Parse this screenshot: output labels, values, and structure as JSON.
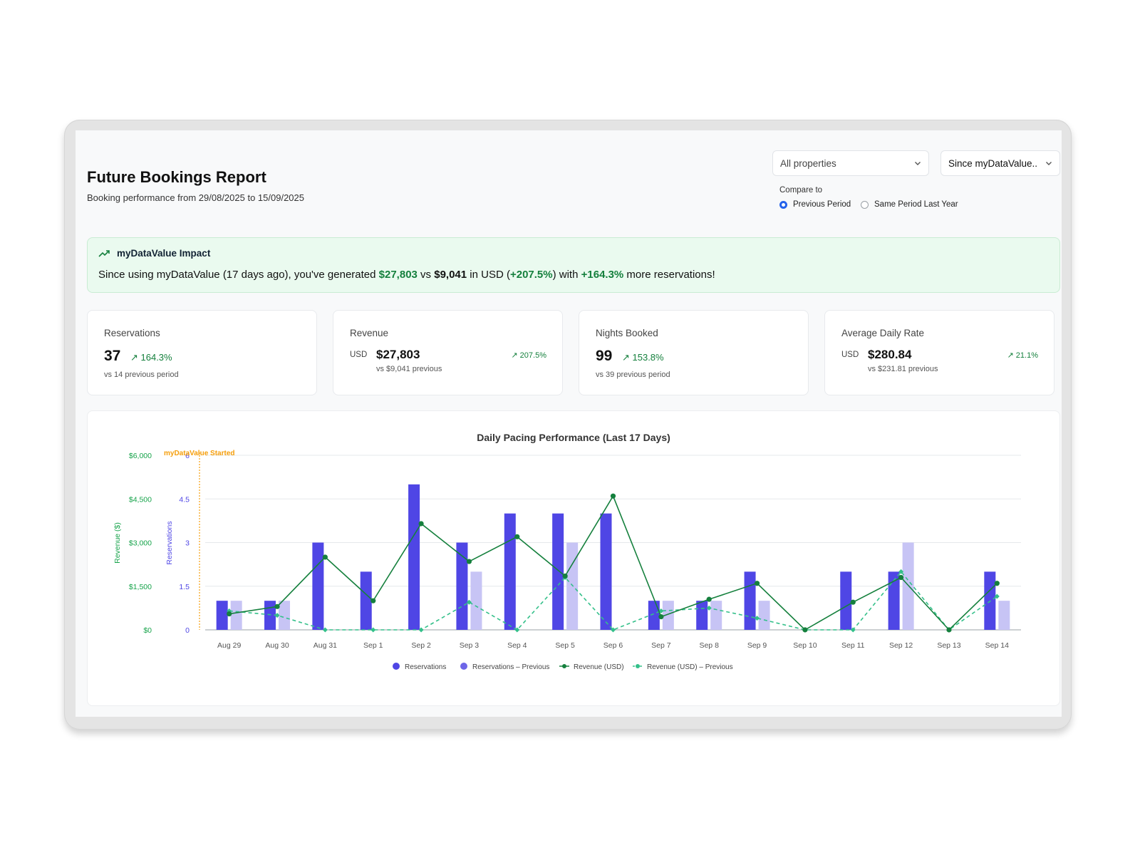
{
  "header": {
    "title": "Future Bookings Report",
    "subtitle": "Booking performance from 29/08/2025 to 15/09/2025"
  },
  "filters": {
    "property_select": "All properties",
    "period_select": "Since myDataValue..",
    "compare_label": "Compare to",
    "compare_options": [
      {
        "label": "Previous Period",
        "selected": true
      },
      {
        "label": "Same Period Last Year",
        "selected": false
      }
    ]
  },
  "impact": {
    "heading": "myDataValue Impact",
    "text_prefix": "Since using myDataValue (17 days ago), you've generated ",
    "revenue_now": "$27,803",
    "vs_word": " vs ",
    "revenue_prev": "$9,041",
    "in_usd": " in USD (",
    "revenue_change": "+207.5%",
    "with_word": ") with ",
    "reservations_change": "+164.3%",
    "suffix": " more reservations!"
  },
  "kpis": {
    "reservations": {
      "title": "Reservations",
      "value": "37",
      "change": "↗ 164.3%",
      "sub": "vs 14 previous period"
    },
    "revenue": {
      "title": "Revenue",
      "currency": "USD",
      "value": "$27,803",
      "change": "↗ 207.5%",
      "sub": "vs $9,041 previous"
    },
    "nights": {
      "title": "Nights Booked",
      "value": "99",
      "change": "↗ 153.8%",
      "sub": "vs 39 previous period"
    },
    "adr": {
      "title": "Average Daily Rate",
      "currency": "USD",
      "value": "$280.84",
      "change": "↗ 21.1%",
      "sub": "vs $231.81 previous"
    }
  },
  "colors": {
    "accent_blue": "#2563eb",
    "reservations": "#4f46e5",
    "reservations_previous": "#c7c4f5",
    "revenue": "#15803d",
    "revenue_previous": "#34c08a",
    "marker": "#f59e0b",
    "positive": "#15803d"
  },
  "chart_data": {
    "type": "bar",
    "title": "Daily Pacing Performance (Last 17 Days)",
    "categories": [
      "Aug 29",
      "Aug 30",
      "Aug 31",
      "Sep 1",
      "Sep 2",
      "Sep 3",
      "Sep 4",
      "Sep 5",
      "Sep 6",
      "Sep 7",
      "Sep 8",
      "Sep 9",
      "Sep 10",
      "Sep 11",
      "Sep 12",
      "Sep 13",
      "Sep 14"
    ],
    "y_left": {
      "label": "Revenue ($)",
      "ticks": [
        "$0",
        "$1,500",
        "$3,000",
        "$4,500",
        "$6,000"
      ],
      "range": [
        0,
        6000
      ]
    },
    "y_right": {
      "label": "Reservations",
      "ticks": [
        "0",
        "1.5",
        "3",
        "4.5",
        "6"
      ],
      "range": [
        0,
        6
      ]
    },
    "annotation": "myDataValue Started",
    "series": [
      {
        "name": "Reservations",
        "type": "bar",
        "axis": "reservations",
        "values": [
          1,
          1,
          3,
          2,
          5,
          3,
          4,
          4,
          4,
          1,
          1,
          2,
          0,
          2,
          2,
          0,
          2
        ]
      },
      {
        "name": "Reservations – Previous",
        "type": "bar",
        "axis": "reservations",
        "values": [
          1,
          1,
          0,
          0,
          0,
          2,
          0,
          3,
          0,
          1,
          1,
          1,
          0,
          0,
          3,
          0,
          1
        ]
      },
      {
        "name": "Revenue (USD)",
        "type": "line",
        "axis": "revenue",
        "values": [
          550,
          800,
          2500,
          1000,
          3650,
          2350,
          3200,
          1850,
          4600,
          450,
          1050,
          1600,
          0,
          950,
          1800,
          0,
          1600
        ]
      },
      {
        "name": "Revenue (USD) – Previous",
        "type": "line",
        "dashed": true,
        "axis": "revenue",
        "values": [
          650,
          500,
          0,
          0,
          0,
          950,
          0,
          1800,
          0,
          650,
          750,
          400,
          0,
          0,
          2000,
          0,
          1150
        ]
      }
    ],
    "legend_position": "bottom",
    "grid": true
  }
}
